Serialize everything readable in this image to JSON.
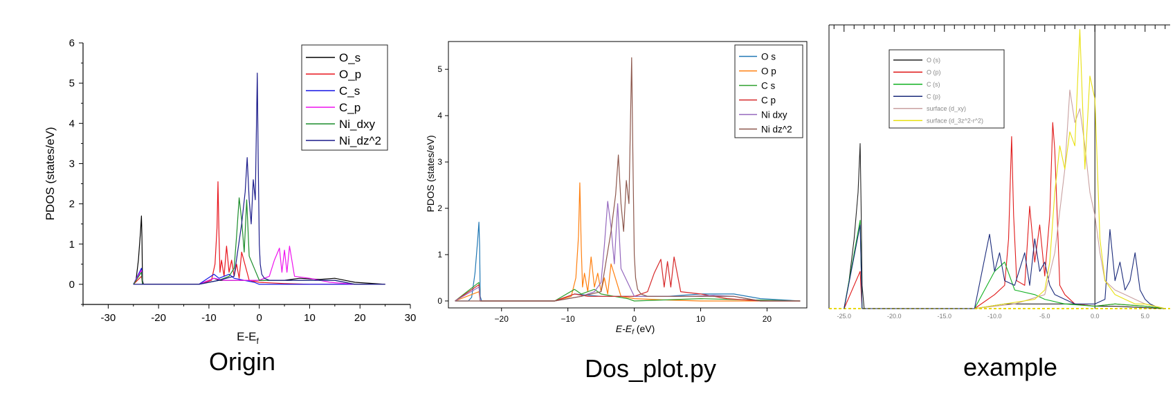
{
  "captions": [
    "Origin",
    "Dos_plot.py",
    "example"
  ],
  "chart_data": [
    {
      "type": "line",
      "xlabel": "E-E",
      "xlabel_sub": "f",
      "ylabel": "PDOS (states/eV)",
      "xlim": [
        -35,
        30
      ],
      "ylim": [
        -0.5,
        6
      ],
      "xticks": [
        -30,
        -20,
        -10,
        0,
        10,
        20,
        30
      ],
      "yticks": [
        0,
        1,
        2,
        3,
        4,
        5,
        6
      ],
      "legend_position": "top-right",
      "series": [
        {
          "name": "O_s",
          "color": "#000000",
          "x": [
            -25,
            -24.5,
            -24,
            -23.6,
            -23.4,
            -23.3,
            -23.2,
            -23,
            -21,
            -12,
            -9,
            -8,
            -5,
            -3,
            -1,
            0,
            2,
            5,
            8,
            12,
            15,
            19,
            25
          ],
          "y": [
            0,
            0.08,
            0.6,
            1.3,
            1.7,
            1.2,
            0.1,
            0,
            0,
            0,
            0.15,
            0.1,
            0.1,
            0.1,
            0.1,
            0.1,
            0.1,
            0.1,
            0.15,
            0.12,
            0.15,
            0.05,
            0
          ]
        },
        {
          "name": "O_p",
          "color": "#e8141c",
          "x": [
            -25,
            -23.4,
            -23.2,
            -12,
            -9.5,
            -8.8,
            -8.4,
            -8.2,
            -8,
            -7.8,
            -7.5,
            -7,
            -6.5,
            -6,
            -5.5,
            -5,
            -4.5,
            -4,
            -3.5,
            -2,
            0,
            5,
            10,
            25
          ],
          "y": [
            0,
            0.2,
            0,
            0,
            0.1,
            0.5,
            1.4,
            2.55,
            1.2,
            0.3,
            0.6,
            0.2,
            0.95,
            0.3,
            0.6,
            0.2,
            0.5,
            0.15,
            0.8,
            0.1,
            0.05,
            0.02,
            0,
            0
          ]
        },
        {
          "name": "C_s",
          "color": "#1414e6",
          "x": [
            -25,
            -23.4,
            -23.2,
            -12,
            -9,
            -8,
            -6,
            -5,
            -3,
            -1,
            0,
            25
          ],
          "y": [
            0,
            0.4,
            0,
            0,
            0.25,
            0.15,
            0.25,
            0.15,
            0.1,
            0.05,
            0,
            0
          ]
        },
        {
          "name": "C_p",
          "color": "#ee10ee",
          "x": [
            -25,
            -23.4,
            -23.2,
            -12,
            -9,
            -7,
            -5,
            0,
            2,
            3,
            4,
            4.5,
            5,
            5.5,
            6,
            7,
            10,
            14,
            19,
            25
          ],
          "y": [
            0,
            0.35,
            0,
            0,
            0.15,
            0.1,
            0.1,
            0.1,
            0.2,
            0.6,
            0.9,
            0.3,
            0.85,
            0.3,
            0.95,
            0.2,
            0.15,
            0.05,
            0,
            0
          ]
        },
        {
          "name": "Ni_dxy",
          "color": "#1a8c2a",
          "x": [
            -25,
            -23.4,
            -23.2,
            -12,
            -8,
            -6,
            -5,
            -4.5,
            -4,
            -3.5,
            -3,
            -2.5,
            -2,
            -1,
            0,
            2,
            5,
            8,
            12,
            15,
            19,
            25
          ],
          "y": [
            0,
            0.3,
            0,
            0,
            0.1,
            0.2,
            0.4,
            1.2,
            2.15,
            1.6,
            0.8,
            2.1,
            0.7,
            0.4,
            0.1,
            0.1,
            0.1,
            0.1,
            0.1,
            0.1,
            0,
            0
          ]
        },
        {
          "name": "Ni_dz^2",
          "color": "#1a1a8a",
          "x": [
            -25,
            -12,
            -8,
            -5,
            -3.5,
            -2.8,
            -2.4,
            -2,
            -1.6,
            -1.2,
            -0.8,
            -0.4,
            -0.2,
            0,
            0.2,
            0.5,
            1,
            2,
            5,
            8,
            12,
            15,
            19,
            25
          ],
          "y": [
            0,
            0,
            0.1,
            0.2,
            1.5,
            2.3,
            3.15,
            2.1,
            1.5,
            2.6,
            2.1,
            5.25,
            3.0,
            1.0,
            0.5,
            0.25,
            0.15,
            0.1,
            0.1,
            0.1,
            0.1,
            0.1,
            0,
            0
          ]
        }
      ]
    },
    {
      "type": "line",
      "xlabel": "E-E",
      "xlabel_sub": "f",
      "xlabel_unit": "(eV)",
      "ylabel": "PDOS (states/eV)",
      "xlim": [
        -28,
        26
      ],
      "ylim": [
        -0.15,
        5.6
      ],
      "xticks": [
        -20,
        -10,
        0,
        10,
        20
      ],
      "xtick_labels": [
        "−20",
        "−10",
        "0",
        "10",
        "20"
      ],
      "yticks": [
        0,
        1,
        2,
        3,
        4,
        5
      ],
      "legend_position": "top-right",
      "series": [
        {
          "name": "O s",
          "color": "#1f77b4",
          "x": [
            -27,
            -25,
            -24.5,
            -24,
            -23.6,
            -23.4,
            -23.3,
            -23.2,
            -23,
            -21,
            -12,
            -9,
            -5,
            0,
            5,
            10,
            15,
            19,
            25
          ],
          "y": [
            0,
            0,
            0.08,
            0.6,
            1.3,
            1.7,
            1.2,
            0.1,
            0,
            0,
            0,
            0.15,
            0.1,
            0.1,
            0.1,
            0.15,
            0.15,
            0.05,
            0
          ]
        },
        {
          "name": "O p",
          "color": "#ff7f0e",
          "x": [
            -27,
            -23.4,
            -23.2,
            -12,
            -9.5,
            -8.8,
            -8.4,
            -8.2,
            -8,
            -7.8,
            -7.5,
            -7,
            -6.5,
            -6,
            -5.5,
            -5,
            -4.5,
            -4,
            -3.5,
            -2,
            0,
            5,
            10,
            25
          ],
          "y": [
            0,
            0.2,
            0,
            0,
            0.1,
            0.5,
            1.4,
            2.55,
            1.2,
            0.3,
            0.6,
            0.2,
            0.95,
            0.3,
            0.6,
            0.2,
            0.5,
            0.15,
            0.8,
            0.1,
            0.05,
            0.02,
            0,
            0
          ]
        },
        {
          "name": "C s",
          "color": "#2ca02c",
          "x": [
            -27,
            -23.4,
            -23.2,
            -12,
            -9,
            -8,
            -6,
            -5,
            -3,
            -1,
            0,
            10,
            15,
            25
          ],
          "y": [
            0,
            0.4,
            0,
            0,
            0.25,
            0.15,
            0.25,
            0.15,
            0.1,
            0.05,
            0,
            0.05,
            0.03,
            0
          ]
        },
        {
          "name": "C p",
          "color": "#d62728",
          "x": [
            -27,
            -23.4,
            -23.2,
            -12,
            -9,
            -7,
            -5,
            0,
            2,
            3,
            4,
            4.5,
            5,
            5.5,
            6,
            7,
            10,
            14,
            19,
            25
          ],
          "y": [
            0,
            0.35,
            0,
            0,
            0.15,
            0.1,
            0.1,
            0.1,
            0.2,
            0.6,
            0.9,
            0.3,
            0.85,
            0.3,
            0.95,
            0.2,
            0.15,
            0.05,
            0,
            0
          ]
        },
        {
          "name": "Ni dxy",
          "color": "#9467bd",
          "x": [
            -27,
            -23.4,
            -23.2,
            -12,
            -8,
            -6,
            -5,
            -4.5,
            -4,
            -3.5,
            -3,
            -2.5,
            -2,
            -1,
            0,
            2,
            5,
            8,
            12,
            15,
            19,
            25
          ],
          "y": [
            0,
            0.3,
            0,
            0,
            0.1,
            0.2,
            0.4,
            1.2,
            2.15,
            1.6,
            0.8,
            2.1,
            0.7,
            0.4,
            0.1,
            0.1,
            0.1,
            0.1,
            0.12,
            0.1,
            0,
            0
          ]
        },
        {
          "name": "Ni dz^2",
          "color": "#8c564b",
          "x": [
            -27,
            -12,
            -8,
            -5,
            -3.5,
            -2.8,
            -2.4,
            -2,
            -1.6,
            -1.2,
            -0.8,
            -0.4,
            -0.2,
            0,
            0.2,
            0.5,
            1,
            2,
            5,
            8,
            12,
            15,
            19,
            25
          ],
          "y": [
            0,
            0,
            0.1,
            0.2,
            1.5,
            2.3,
            3.15,
            2.1,
            1.5,
            2.6,
            2.1,
            5.25,
            3.0,
            1.0,
            0.5,
            0.25,
            0.15,
            0.1,
            0.1,
            0.1,
            0.1,
            0.1,
            0,
            0
          ]
        }
      ]
    },
    {
      "type": "line",
      "xlim": [
        -26.5,
        7.5
      ],
      "ylim": [
        0,
        6.1
      ],
      "xticks": [
        -25,
        -20,
        -15,
        -10,
        -5,
        0,
        5
      ],
      "xtick_labels": [
        "-25.0",
        "-20.0",
        "-15.0",
        "-10.0",
        "-5.0",
        "0.0",
        "5.0"
      ],
      "vline": 0,
      "legend_position": "top-left",
      "series": [
        {
          "name": "O (s)",
          "color": "#222222",
          "x": [
            -25,
            -24.5,
            -24,
            -23.6,
            -23.4,
            -23.3,
            -23.2,
            -23,
            -12,
            -9,
            -5,
            -2,
            0,
            2,
            5,
            7
          ],
          "y": [
            0,
            0.6,
            1.5,
            2.5,
            3.55,
            2.2,
            0.5,
            0,
            0,
            0.1,
            0.1,
            0.1,
            0.05,
            0.05,
            0.02,
            0
          ]
        },
        {
          "name": "O (p)",
          "color": "#e01818",
          "x": [
            -25,
            -23.4,
            -23.2,
            -12,
            -10,
            -9,
            -8.6,
            -8.3,
            -8.1,
            -7.8,
            -7,
            -6.5,
            -6,
            -5.5,
            -5,
            -4.5,
            -4.2,
            -4,
            -3.5,
            -3,
            -2,
            0,
            2,
            5,
            7
          ],
          "y": [
            0,
            0.8,
            0,
            0,
            0.3,
            0.5,
            1.5,
            3.7,
            2.0,
            0.6,
            0.5,
            2.2,
            1.0,
            1.8,
            0.7,
            2.0,
            4.0,
            3.4,
            0.5,
            0.3,
            0.1,
            0.05,
            0.1,
            0.05,
            0
          ]
        },
        {
          "name": "C (s)",
          "color": "#10b020",
          "x": [
            -25,
            -23.4,
            -23.2,
            -12,
            -10,
            -9,
            -8,
            -6,
            -5,
            -3,
            0,
            2,
            5,
            7
          ],
          "y": [
            0,
            1.9,
            0,
            0,
            0.8,
            1.0,
            0.4,
            0.3,
            0.2,
            0.1,
            0.05,
            0.1,
            0.05,
            0
          ]
        },
        {
          "name": "C (p)",
          "color": "#1a2a7a",
          "x": [
            -25,
            -23.4,
            -23.2,
            -12,
            -10.5,
            -10,
            -9.5,
            -9,
            -8,
            -7,
            -6.5,
            -6,
            -5.5,
            -5,
            -4.5,
            -4,
            -3,
            -2,
            -1,
            0,
            1,
            1.5,
            2,
            2.5,
            3,
            3.5,
            4,
            4.5,
            5,
            5.5,
            6,
            7
          ],
          "y": [
            0,
            1.8,
            0,
            0,
            1.6,
            0.8,
            1.2,
            0.6,
            0.5,
            1.2,
            0.5,
            1.5,
            0.8,
            1.0,
            0.5,
            0.3,
            0.2,
            0.1,
            0.1,
            0.1,
            0.2,
            1.7,
            0.6,
            1.0,
            0.4,
            0.6,
            1.2,
            0.4,
            0.2,
            0.1,
            0.05,
            0
          ]
        },
        {
          "name": "surface (d_xy)",
          "color": "#c8a0a0",
          "x": [
            -12,
            -8,
            -5,
            -4,
            -3,
            -2.5,
            -2,
            -1.5,
            -1,
            -0.5,
            0,
            0.5,
            1,
            2,
            3,
            4,
            5,
            7
          ],
          "y": [
            0,
            0.1,
            0.3,
            1.2,
            3.0,
            4.7,
            4.0,
            4.3,
            3.5,
            2.5,
            2.0,
            1.2,
            0.6,
            0.4,
            0.3,
            0.2,
            0.1,
            0
          ]
        },
        {
          "name": "surface (d_3z^2-r^2)",
          "color": "#e8e010",
          "x": [
            -12,
            -6,
            -5,
            -4.5,
            -4,
            -3.5,
            -3,
            -2.5,
            -2,
            -1.5,
            -1,
            -0.5,
            0,
            0.5,
            1,
            2,
            3,
            4,
            5,
            7
          ],
          "y": [
            0,
            0.2,
            0.4,
            1.0,
            2.5,
            3.5,
            3.0,
            3.8,
            3.5,
            6.0,
            3.0,
            5.0,
            4.5,
            1.5,
            0.6,
            0.3,
            0.2,
            0.1,
            0.1,
            0
          ]
        }
      ]
    }
  ]
}
